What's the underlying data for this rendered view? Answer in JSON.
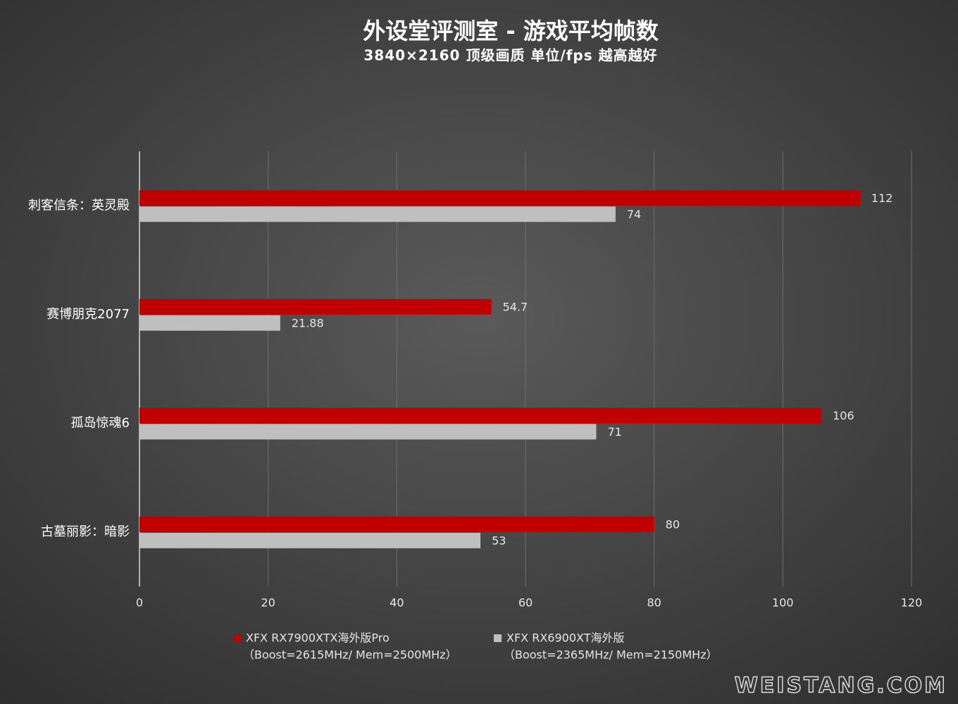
{
  "chart_data": {
    "type": "hbar",
    "title": "外设堂评测室 -  游戏平均帧数",
    "subtitle": "3840×2160 顶级画质 单位/fps 越高越好",
    "categories": [
      "刺客信条：英灵殿",
      "赛博朋克2077",
      "孤岛惊魂6",
      "古墓丽影：暗影"
    ],
    "series": [
      {
        "name": "XFX RX7900XTX海外版Pro",
        "note": "（Boost=2615MHz/ Mem=2500MHz）",
        "color": "#c00000",
        "values": [
          112,
          54.7,
          106,
          80
        ]
      },
      {
        "name": "XFX RX6900XT海外版",
        "note": "（Boost=2365MHz/ Mem=2150MHz）",
        "color": "#bfbfbf",
        "values": [
          74,
          21.88,
          71,
          53
        ]
      }
    ],
    "xlim": [
      0,
      120
    ],
    "xticks": [
      0,
      20,
      40,
      60,
      80,
      100,
      120
    ],
    "grid": true,
    "legend": "bottom",
    "watermark": "WEISTANG.COM"
  }
}
